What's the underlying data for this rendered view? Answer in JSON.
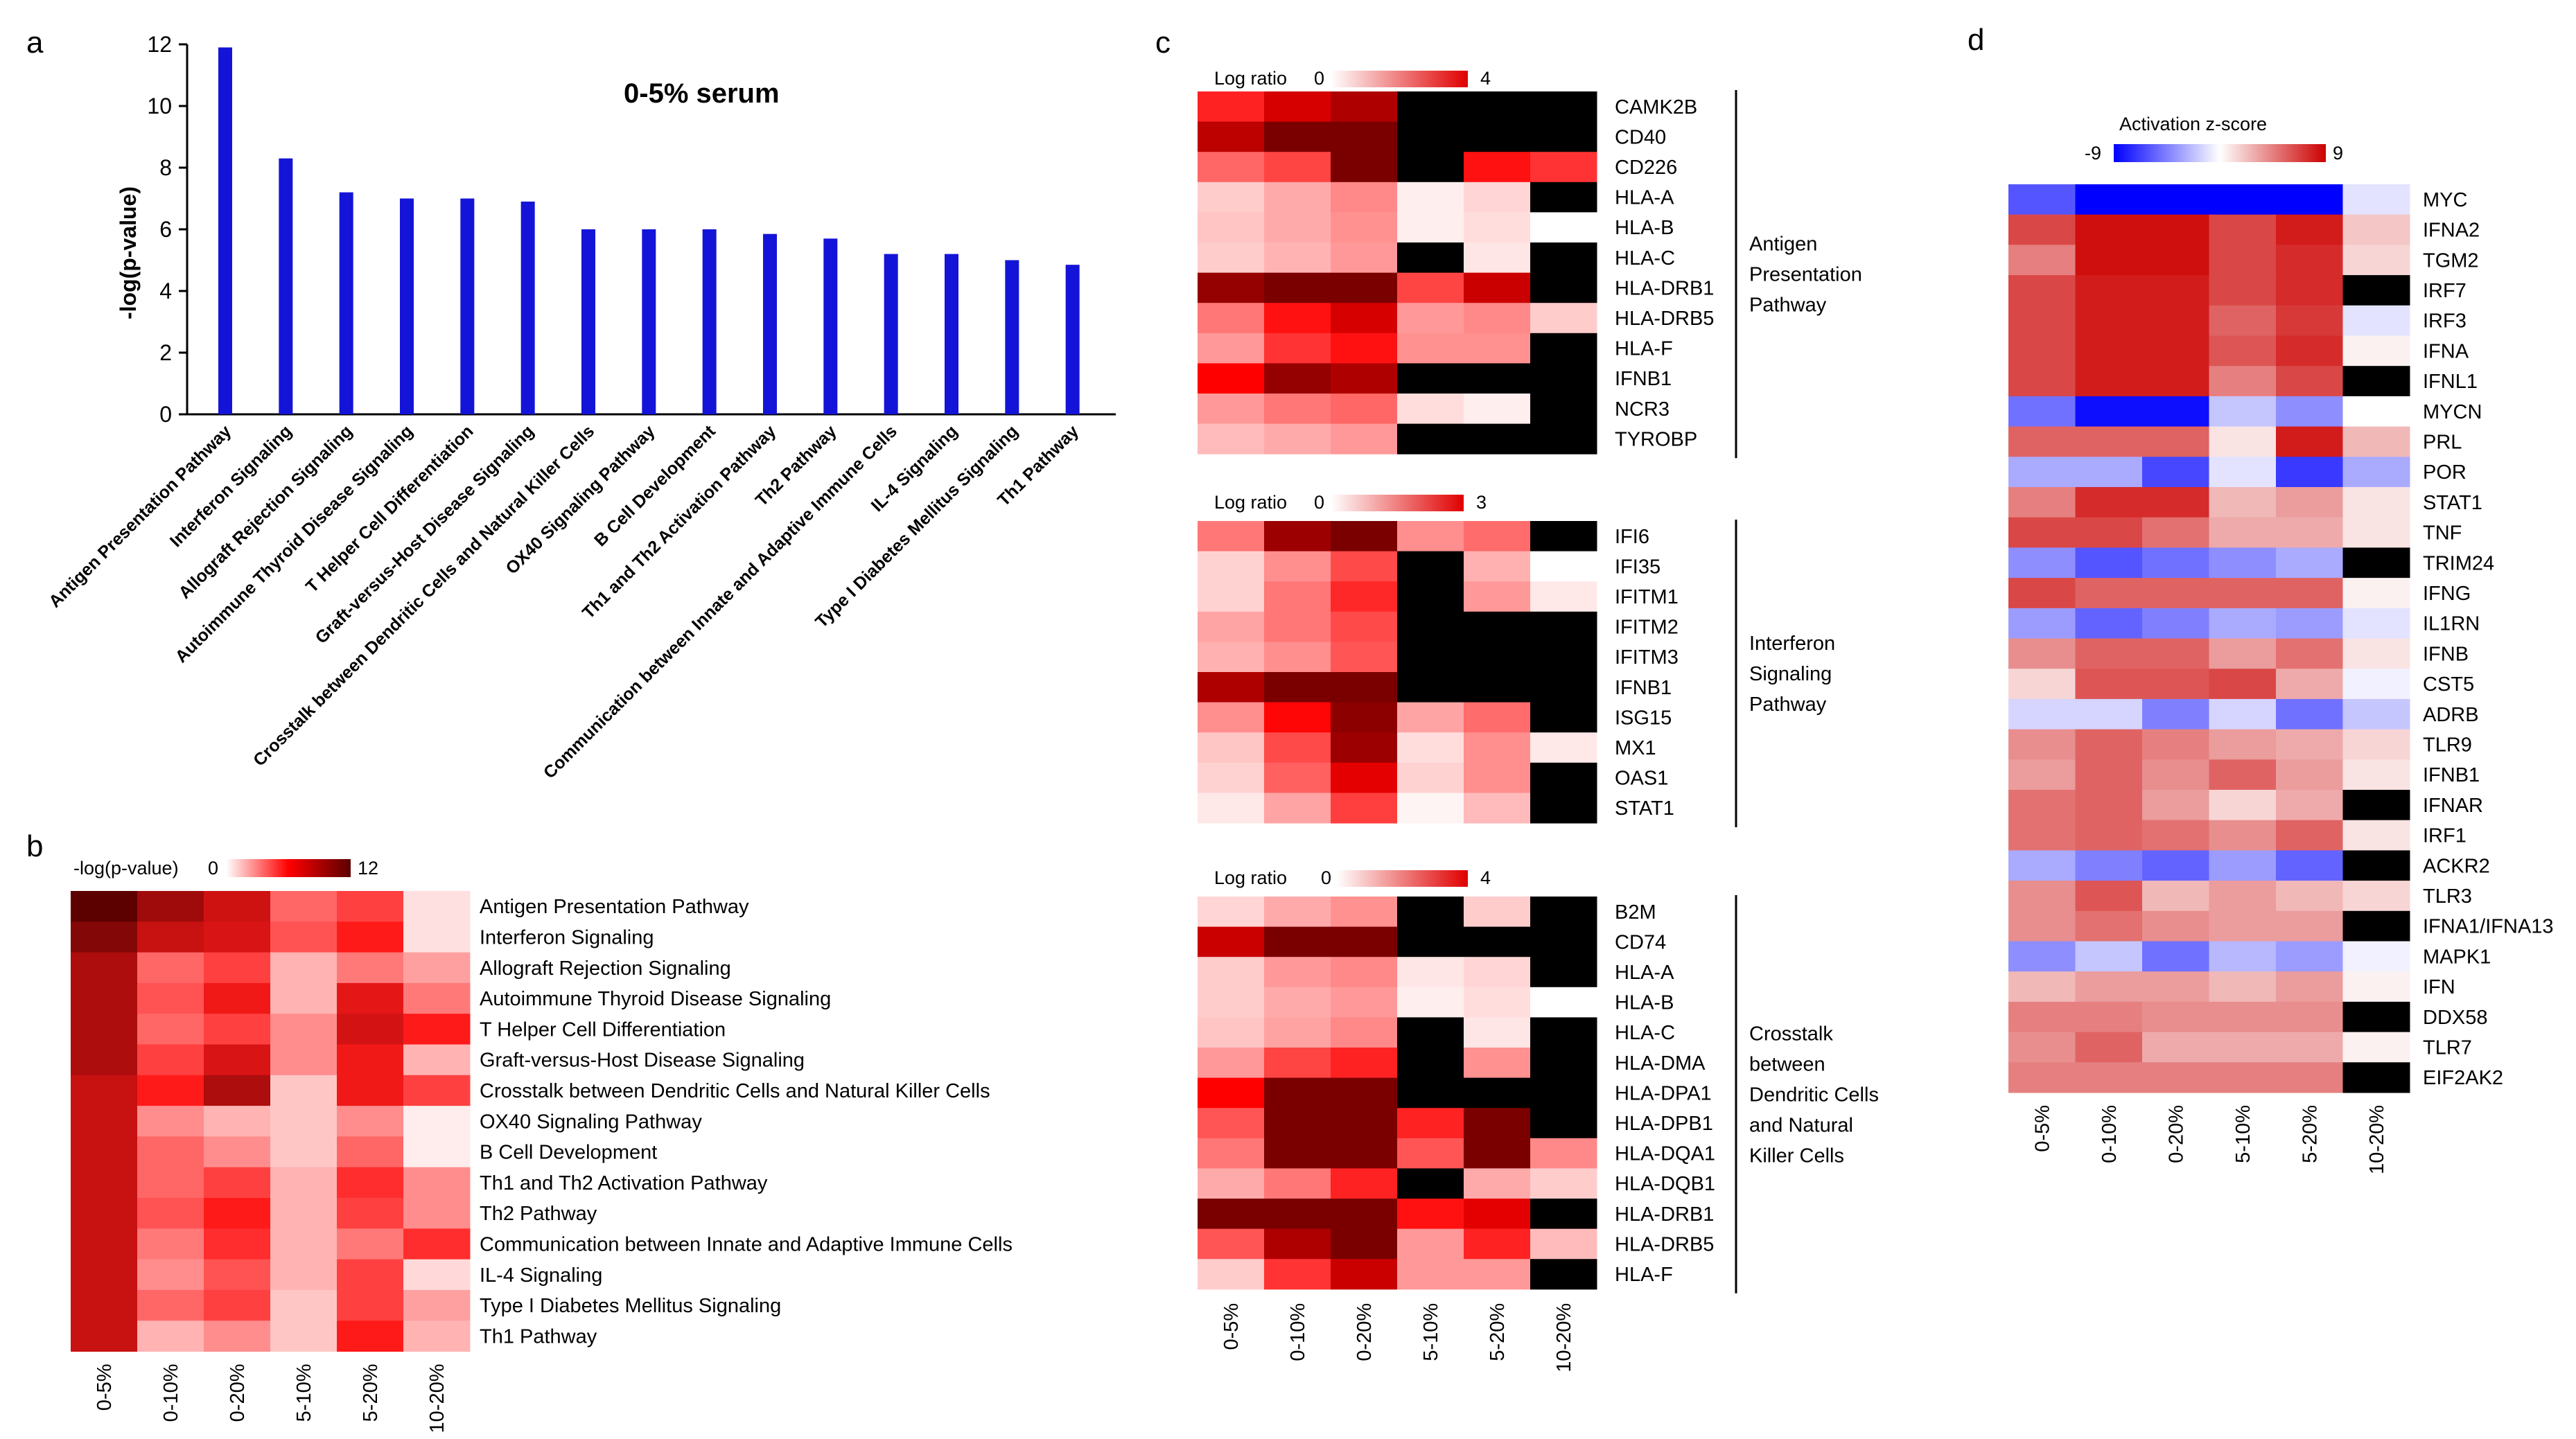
{
  "panel_letters": {
    "a": "a",
    "b": "b",
    "c": "c",
    "d": "d"
  },
  "chart_data": [
    {
      "panel": "a",
      "type": "bar",
      "title": "0-5% serum",
      "ylabel": "-log(p-value)",
      "xlabel": "",
      "ylim": [
        0,
        12
      ],
      "yticks": [
        "0",
        "2",
        "4",
        "6",
        "8",
        "10",
        "12"
      ],
      "bar_color": "#1414d8",
      "categories": [
        "Antigen Presentation Pathway",
        "Interferon Signaling",
        "Allograft Rejection Signaling",
        "Autoimmune Thyroid Disease Signaling",
        "T Helper Cell Differentiation",
        "Graft-versus-Host Disease Signaling",
        "Crosstalk between Dendritic Cells and Natural Killer Cells",
        "OX40 Signaling Pathway",
        "B Cell Development",
        "Th1 and Th2 Activation Pathway",
        "Th2 Pathway",
        "Communication between Innate and Adaptive Immune Cells",
        "IL-4 Signaling",
        "Type I Diabetes Mellitus Signaling",
        "Th1 Pathway"
      ],
      "values": [
        11.9,
        8.3,
        7.2,
        7.0,
        7.0,
        6.9,
        6.0,
        6.0,
        6.0,
        5.85,
        5.7,
        5.2,
        5.2,
        5.0,
        4.85
      ]
    },
    {
      "panel": "b",
      "type": "heatmap",
      "scale": {
        "label": "-log(p-value)",
        "min": 0,
        "max": 12,
        "min_label": "0",
        "max_label": "12",
        "low_color": "#ffffff",
        "high_color": "#5a0000"
      },
      "columns": [
        "0-5%",
        "0-10%",
        "0-20%",
        "5-10%",
        "5-20%",
        "10-20%"
      ],
      "rows": [
        "Antigen Presentation Pathway",
        "Interferon Signaling",
        "Allograft Rejection Signaling",
        "Autoimmune Thyroid Disease Signaling",
        "T Helper Cell Differentiation",
        "Graft-versus-Host Disease Signaling",
        "Crosstalk between Dendritic Cells and Natural Killer Cells",
        "OX40 Signaling Pathway",
        "B Cell Development",
        "Th1 and Th2 Activation Pathway",
        "Th2 Pathway",
        "Communication between Innate and Adaptive Immune Cells",
        "IL-4 Signaling",
        "Type I Diabetes Mellitus Signaling",
        "Th1 Pathway"
      ],
      "values": [
        [
          11.9,
          9.5,
          7.8,
          4.0,
          5.0,
          0.8
        ],
        [
          10.5,
          8.0,
          7.4,
          4.5,
          6.0,
          0.8
        ],
        [
          9.0,
          4.0,
          5.0,
          2.0,
          3.5,
          2.5
        ],
        [
          9.0,
          4.5,
          6.5,
          2.0,
          7.0,
          3.5
        ],
        [
          9.0,
          4.0,
          5.0,
          3.0,
          7.6,
          6.0
        ],
        [
          9.0,
          5.0,
          7.4,
          3.0,
          6.5,
          2.0
        ],
        [
          8.0,
          6.0,
          9.0,
          1.5,
          6.5,
          5.0
        ],
        [
          8.0,
          3.0,
          2.0,
          1.5,
          3.0,
          0.5
        ],
        [
          8.0,
          4.0,
          3.0,
          1.5,
          4.0,
          0.5
        ],
        [
          8.0,
          4.0,
          5.0,
          2.0,
          5.5,
          3.0
        ],
        [
          8.0,
          4.5,
          6.0,
          2.0,
          5.0,
          3.0
        ],
        [
          8.0,
          3.5,
          5.5,
          2.0,
          3.5,
          5.5
        ],
        [
          8.0,
          3.0,
          4.5,
          2.0,
          5.0,
          1.0
        ],
        [
          8.0,
          4.0,
          5.0,
          1.5,
          5.0,
          2.5
        ],
        [
          8.0,
          2.0,
          3.0,
          1.5,
          6.0,
          2.0
        ]
      ]
    },
    {
      "panel": "c",
      "type": "heatmap",
      "columns": [
        "0-5%",
        "0-10%",
        "0-20%",
        "5-10%",
        "5-20%",
        "10-20%"
      ],
      "missing_color": "#000000",
      "blocks": [
        {
          "scale": {
            "label": "Log ratio",
            "min": 0,
            "max": 4,
            "min_label": "0",
            "max_label": "4",
            "low_color": "#ffffff",
            "high_color": "#ff0000"
          },
          "group": [
            "Antigen",
            "Presentation",
            "Pathway"
          ],
          "rows": [
            "CAMK2B",
            "CD40",
            "CD226",
            "HLA-A",
            "HLA-B",
            "HLA-C",
            "HLA-DRB1",
            "HLA-DRB5",
            "HLA-F",
            "IFNB1",
            "NCR3",
            "TYROBP"
          ],
          "values": [
            [
              2.6,
              3.3,
              3.6,
              null,
              null,
              null
            ],
            [
              3.5,
              4.3,
              4.6,
              null,
              null,
              null
            ],
            [
              1.8,
              2.2,
              4.0,
              null,
              2.8,
              2.4
            ],
            [
              0.6,
              1.0,
              1.4,
              0.2,
              0.5,
              null
            ],
            [
              0.7,
              1.0,
              1.3,
              0.2,
              0.4,
              0.0
            ],
            [
              0.6,
              0.9,
              1.2,
              null,
              0.3,
              null
            ],
            [
              3.8,
              4.5,
              4.8,
              2.2,
              3.4,
              null
            ],
            [
              1.6,
              2.8,
              3.3,
              1.2,
              1.4,
              0.6
            ],
            [
              1.2,
              2.4,
              2.8,
              1.3,
              1.3,
              null
            ],
            [
              3.0,
              3.8,
              3.6,
              null,
              null,
              null
            ],
            [
              1.2,
              1.6,
              1.8,
              0.4,
              0.2,
              null
            ],
            [
              0.8,
              1.0,
              1.2,
              null,
              null,
              null
            ]
          ]
        },
        {
          "scale": {
            "label": "Log ratio",
            "min": 0,
            "max": 3,
            "min_label": "0",
            "max_label": "3",
            "low_color": "#ffffff",
            "high_color": "#ff0000"
          },
          "group": [
            "Interferon",
            "Signaling",
            "Pathway"
          ],
          "rows": [
            "IFI6",
            "IFI35",
            "IFITM1",
            "IFITM2",
            "IFITM3",
            "IFNB1",
            "ISG15",
            "MX1",
            "OAS1",
            "STAT1"
          ],
          "values": [
            [
              1.2,
              2.8,
              3.1,
              1.0,
              1.3,
              null
            ],
            [
              0.4,
              1.0,
              1.6,
              null,
              0.7,
              0.0
            ],
            [
              0.4,
              1.2,
              1.9,
              null,
              0.9,
              0.2
            ],
            [
              0.8,
              1.2,
              1.6,
              null,
              null,
              null
            ],
            [
              0.7,
              1.0,
              1.5,
              null,
              null,
              null
            ],
            [
              2.7,
              3.4,
              3.3,
              null,
              null,
              null
            ],
            [
              1.0,
              2.2,
              2.9,
              0.8,
              1.3,
              null
            ],
            [
              0.5,
              1.6,
              2.8,
              0.3,
              1.0,
              0.2
            ],
            [
              0.4,
              1.4,
              2.4,
              0.4,
              1.0,
              null
            ],
            [
              0.2,
              0.8,
              1.7,
              0.1,
              0.6,
              null
            ]
          ]
        },
        {
          "scale": {
            "label": "Log ratio",
            "min": 0,
            "max": 4,
            "min_label": "0",
            "max_label": "4",
            "low_color": "#ffffff",
            "high_color": "#ff0000"
          },
          "group": [
            "Crosstalk",
            "between",
            "Dendritic Cells",
            "and Natural",
            "Killer Cells"
          ],
          "rows": [
            "B2M",
            "CD74",
            "HLA-A",
            "HLA-B",
            "HLA-C",
            "HLA-DMA",
            "HLA-DPA1",
            "HLA-DPB1",
            "HLA-DQA1",
            "HLA-DQB1",
            "HLA-DRB1",
            "HLA-DRB5",
            "HLA-F"
          ],
          "values": [
            [
              0.5,
              1.0,
              1.3,
              null,
              0.6,
              null
            ],
            [
              3.4,
              4.8,
              5.6,
              null,
              null,
              null
            ],
            [
              0.6,
              1.2,
              1.4,
              0.3,
              0.5,
              null
            ],
            [
              0.6,
              1.0,
              1.2,
              0.2,
              0.4,
              0.0
            ],
            [
              0.7,
              1.1,
              1.4,
              null,
              0.3,
              null
            ],
            [
              1.2,
              2.2,
              2.6,
              null,
              1.3,
              null
            ],
            [
              3.0,
              4.6,
              4.8,
              null,
              null,
              null
            ],
            [
              2.0,
              4.4,
              5.0,
              2.6,
              4.0,
              null
            ],
            [
              1.6,
              4.0,
              5.2,
              2.0,
              4.2,
              1.4
            ],
            [
              1.0,
              1.6,
              2.6,
              null,
              1.0,
              0.6
            ],
            [
              4.0,
              5.4,
              5.8,
              2.8,
              3.2,
              null
            ],
            [
              2.0,
              3.6,
              4.2,
              1.2,
              2.6,
              0.8
            ],
            [
              0.6,
              2.4,
              3.4,
              1.2,
              1.2,
              null
            ]
          ]
        }
      ]
    },
    {
      "panel": "d",
      "type": "heatmap",
      "scale": {
        "label": "Activation z-score",
        "min": -9,
        "max": 9,
        "min_label": "-9",
        "max_label": "9",
        "low_color": "#0000ff",
        "mid_color": "#ffffff",
        "high_color": "#cc0000"
      },
      "missing_color": "#000000",
      "columns": [
        "0-5%",
        "0-10%",
        "0-20%",
        "5-10%",
        "5-20%",
        "10-20%"
      ],
      "rows": [
        "MYC",
        "IFNA2",
        "TGM2",
        "IRF7",
        "IRF3",
        "IFNA",
        "IFNL1",
        "MYCN",
        "PRL",
        "POR",
        "STAT1",
        "TNF",
        "TRIM24",
        "IFNG",
        "IL1RN",
        "IFNB",
        "CST5",
        "ADRB",
        "TLR9",
        "IFNB1",
        "IFNAR",
        "IRF1",
        "ACKR2",
        "TLR3",
        "IFNA1/IFNA13",
        "MAPK1",
        "IFN",
        "DDX58",
        "TLR7",
        "EIF2AK2"
      ],
      "values": [
        [
          -6,
          -9,
          -9,
          -9,
          -9,
          -1
        ],
        [
          6.5,
          8.5,
          8.5,
          6.5,
          8,
          2
        ],
        [
          4.5,
          8.5,
          8.5,
          6.5,
          7.5,
          1.5
        ],
        [
          6.5,
          8,
          8,
          6.5,
          7.5,
          null
        ],
        [
          6.5,
          8,
          8,
          5.5,
          7,
          -1
        ],
        [
          6.5,
          8,
          8,
          6,
          7.5,
          0.5
        ],
        [
          6.5,
          8,
          8,
          4.5,
          6.5,
          null
        ],
        [
          -5,
          -8.5,
          -8.5,
          -2,
          -4,
          0
        ],
        [
          5.5,
          5.5,
          5.5,
          1,
          8,
          2.5
        ],
        [
          -3,
          -3,
          -6.5,
          -1,
          -7,
          -3
        ],
        [
          4.5,
          7.5,
          7.5,
          2.5,
          3.5,
          1
        ],
        [
          6.5,
          6.5,
          5,
          3,
          3,
          1
        ],
        [
          -4,
          -6,
          -5,
          -4,
          -3,
          null
        ],
        [
          6.5,
          5.5,
          5.5,
          5.5,
          5.5,
          0.5
        ],
        [
          -3.5,
          -5.5,
          -4.5,
          -3,
          -3.5,
          -1
        ],
        [
          4,
          5.5,
          5.5,
          3.5,
          5,
          1
        ],
        [
          1.5,
          6,
          6,
          6.5,
          3,
          -0.5
        ],
        [
          -1.5,
          -1.5,
          -4.5,
          -1.5,
          -5,
          -2
        ],
        [
          4,
          5.5,
          4.5,
          3.5,
          3,
          1.5
        ],
        [
          3.5,
          5.5,
          4,
          5.5,
          3.5,
          1
        ],
        [
          5,
          5.5,
          3.5,
          1.5,
          3,
          null
        ],
        [
          5,
          5.5,
          5,
          4,
          5.5,
          1
        ],
        [
          -3,
          -4.5,
          -5.5,
          -3.5,
          -5.5,
          null
        ],
        [
          4,
          6,
          2.5,
          3.5,
          2.5,
          1.5
        ],
        [
          4,
          5,
          4,
          3.5,
          3.5,
          null
        ],
        [
          -4,
          -2,
          -5,
          -2.5,
          -3.5,
          -0.5
        ],
        [
          2.5,
          3.5,
          3.5,
          2.5,
          3.5,
          0.5
        ],
        [
          4.5,
          4.5,
          4,
          4,
          4,
          null
        ],
        [
          4,
          5.5,
          3,
          3,
          3,
          0.5
        ],
        [
          4.5,
          4.5,
          4.5,
          4.5,
          4.5,
          null
        ]
      ]
    }
  ]
}
